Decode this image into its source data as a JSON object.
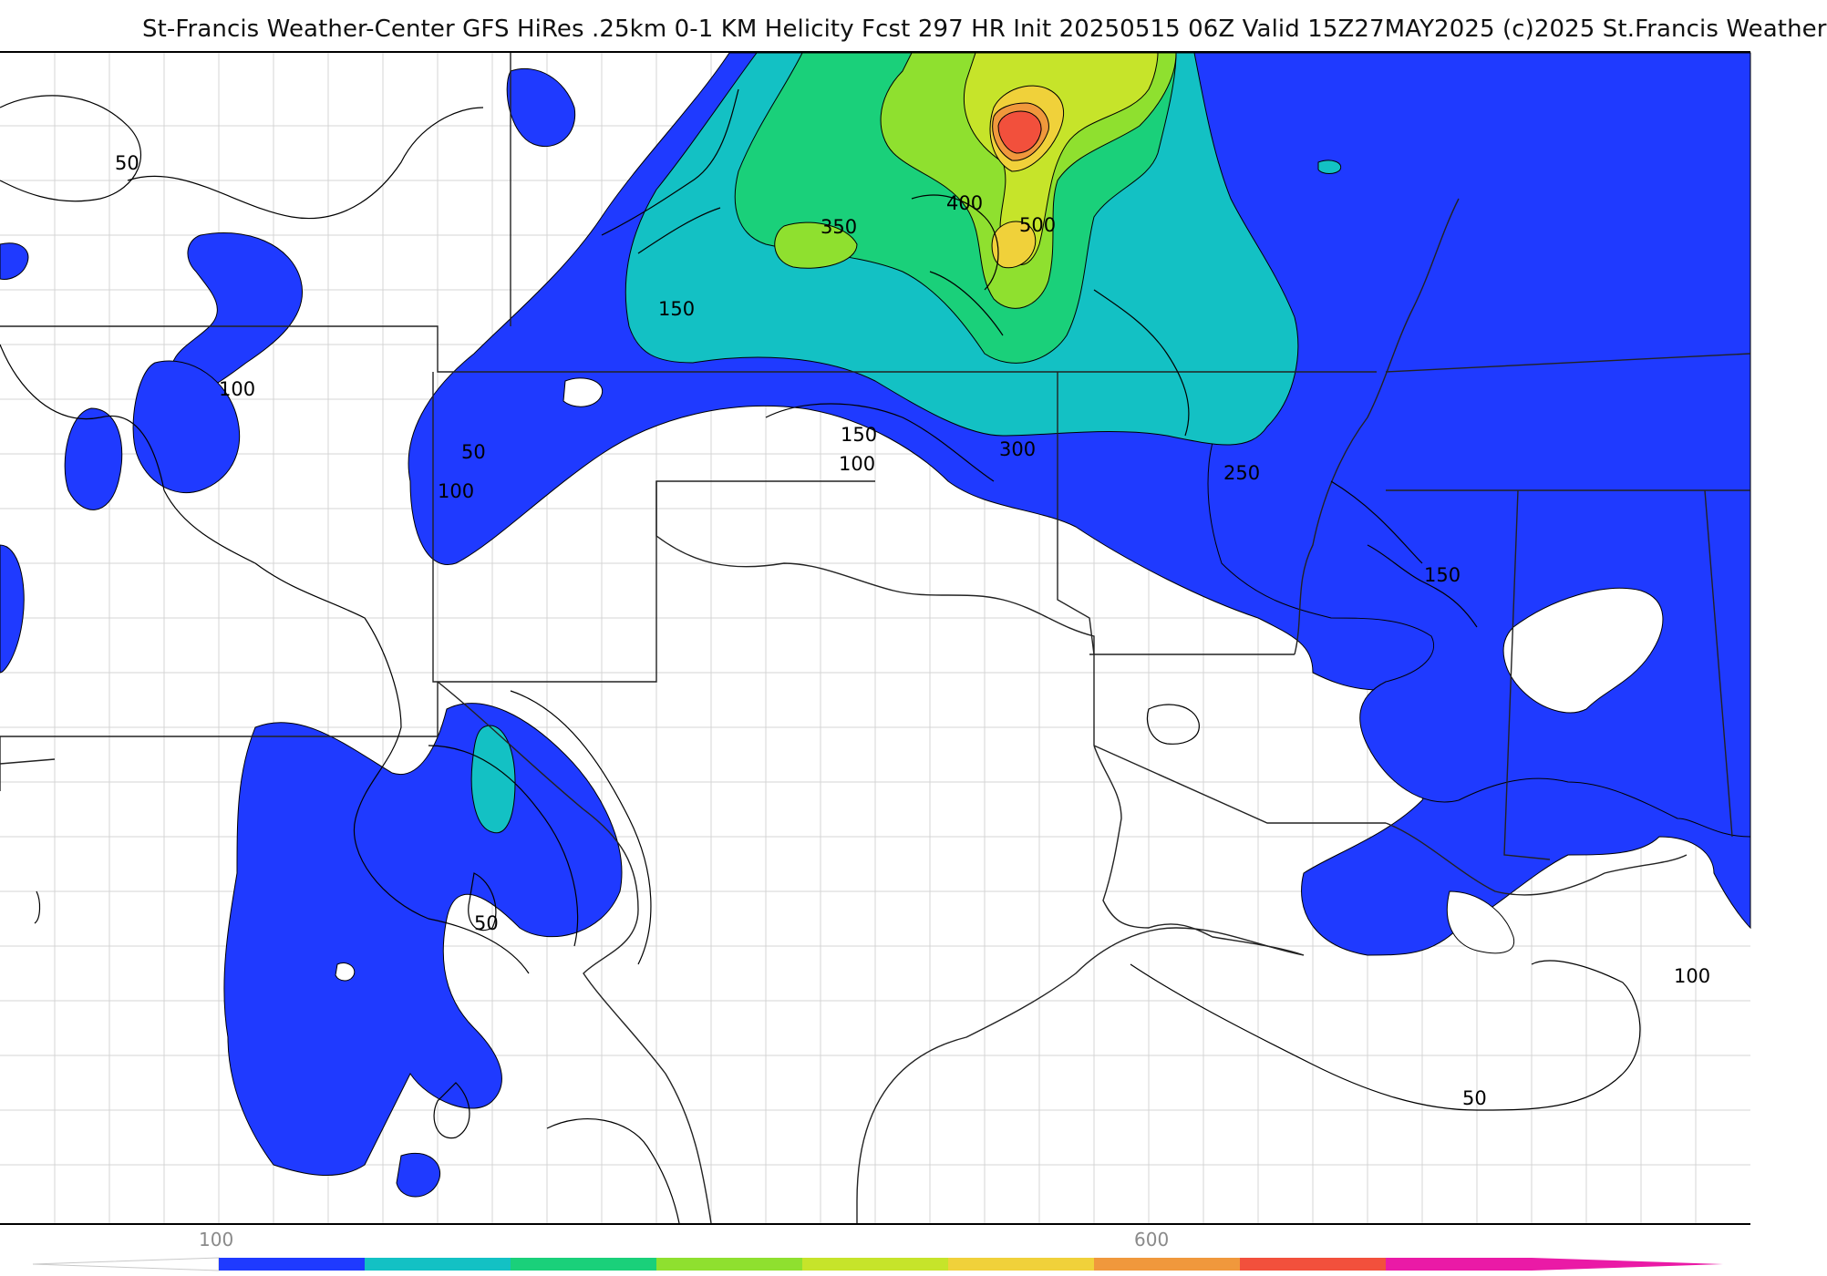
{
  "title": "St-Francis Weather-Center GFS HiRes .25km 0-1 KM Helicity Fcst 297 HR Init 20250515 06Z  Valid 15Z27MAY2025    (c)2025 St.Francis Weather",
  "colors": {
    "c100": "#1f3aff",
    "c200": "#13c1c4",
    "c250": "#16c9a8",
    "c300": "#1ad07a",
    "c350": "#8fe02f",
    "c400": "#c6e42a",
    "c450": "#f0d13a",
    "c500": "#f0983c",
    "c550": "#f2503c",
    "c600": "#f0307a",
    "c650": "#ea1aa6"
  },
  "contour_labels": [
    "50",
    "100",
    "50",
    "100",
    "150",
    "350",
    "400",
    "500",
    "150",
    "100",
    "300",
    "250",
    "150",
    "50",
    "100",
    "50"
  ],
  "colorbar": {
    "tick_labels": [
      "100",
      "600"
    ],
    "colors": [
      "#1f3aff",
      "#13c1c4",
      "#1ad07a",
      "#8fe02f",
      "#c6e42a",
      "#f0d13a",
      "#f0983c",
      "#f2503c",
      "#ea1aa6"
    ]
  }
}
